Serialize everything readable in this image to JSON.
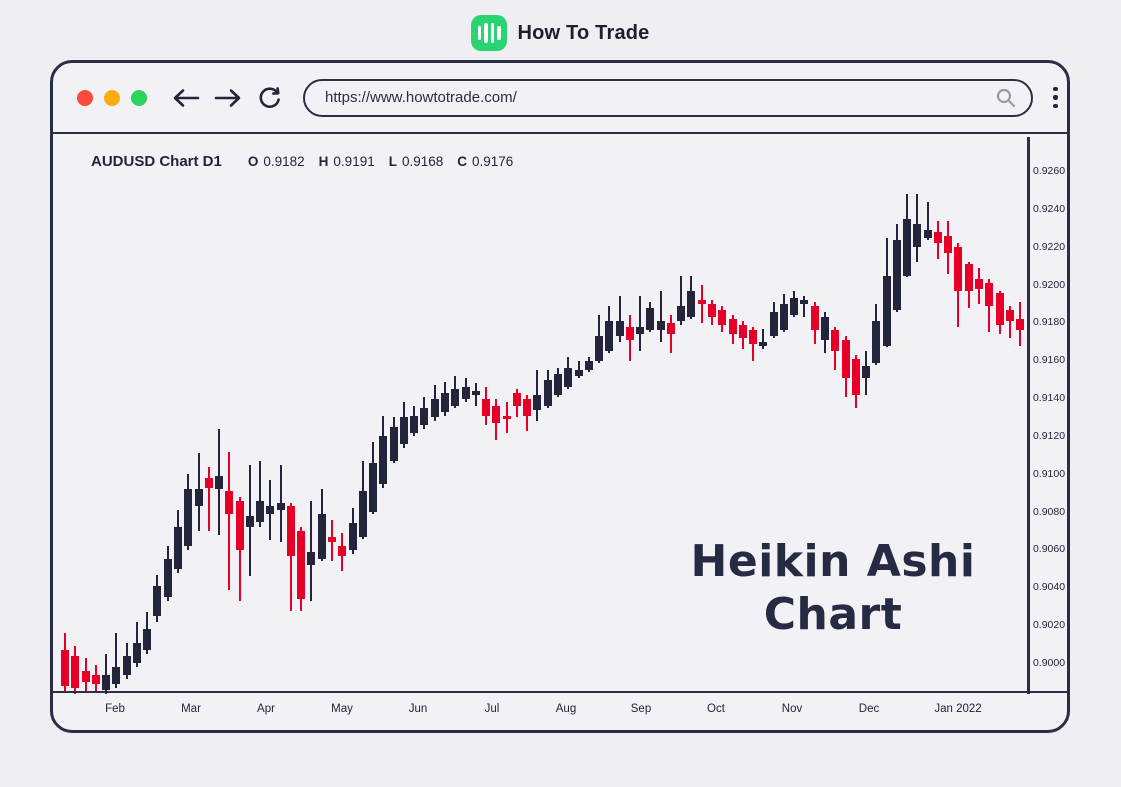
{
  "brand": {
    "name": "How To Trade",
    "logo_color": "#2bd473",
    "logo_icon": "candlestick-bars-icon"
  },
  "browser": {
    "url": "https://www.howtotrade.com/",
    "traffic_lights": [
      "#fb4a3e",
      "#fcaa12",
      "#2bd45f"
    ]
  },
  "chart": {
    "symbol_title": "AUDUSD Chart D1",
    "ohlc": {
      "o_label": "O",
      "o": "0.9182",
      "h_label": "H",
      "h": "0.9191",
      "l_label": "L",
      "l": "0.9168",
      "c_label": "C",
      "c": "0.9176"
    },
    "watermark_line1": "Heikin Ashi",
    "watermark_line2": "Chart",
    "colors": {
      "bull": "#23253a",
      "bear": "#e60028",
      "axis": "#2c2e45"
    }
  },
  "chart_data": {
    "type": "candlestick",
    "title": "AUDUSD Chart D1",
    "subtitle": "Heikin Ashi Chart",
    "x_labels": [
      "Feb",
      "Mar",
      "Apr",
      "May",
      "Jun",
      "Jul",
      "Aug",
      "Sep",
      "Oct",
      "Nov",
      "Dec",
      "Jan 2022"
    ],
    "y_tick_labels": [
      "0.9260",
      "0.9240",
      "0.9220",
      "0.9200",
      "0.9180",
      "0.9160",
      "0.9140",
      "0.9120",
      "0.9100",
      "0.9080",
      "0.9060",
      "0.9040",
      "0.9020",
      "0.9000"
    ],
    "y_range": [
      0.898,
      0.9262
    ],
    "grid": false,
    "legend": false,
    "candles_format": [
      "open",
      "high",
      "low",
      "close"
    ],
    "candles": [
      [
        0.9007,
        0.9016,
        0.8985,
        0.8988
      ],
      [
        0.9004,
        0.9009,
        0.8984,
        0.8987
      ],
      [
        0.8996,
        0.9003,
        0.8985,
        0.899
      ],
      [
        0.8994,
        0.8999,
        0.8985,
        0.8989
      ],
      [
        0.8986,
        0.9005,
        0.8984,
        0.8994
      ],
      [
        0.8989,
        0.9016,
        0.8987,
        0.8998
      ],
      [
        0.8994,
        0.9011,
        0.8992,
        0.9004
      ],
      [
        0.9,
        0.9022,
        0.8998,
        0.9011
      ],
      [
        0.9007,
        0.9027,
        0.9005,
        0.9018
      ],
      [
        0.9025,
        0.9047,
        0.9022,
        0.9041
      ],
      [
        0.9035,
        0.9062,
        0.9033,
        0.9055
      ],
      [
        0.905,
        0.9081,
        0.9048,
        0.9072
      ],
      [
        0.9062,
        0.91,
        0.906,
        0.9092
      ],
      [
        0.9083,
        0.9111,
        0.907,
        0.9092
      ],
      [
        0.9098,
        0.9104,
        0.907,
        0.9093
      ],
      [
        0.9092,
        0.9124,
        0.9068,
        0.9099
      ],
      [
        0.9091,
        0.9112,
        0.9039,
        0.9079
      ],
      [
        0.9086,
        0.9088,
        0.9033,
        0.906
      ],
      [
        0.9072,
        0.9105,
        0.9046,
        0.9078
      ],
      [
        0.9075,
        0.9107,
        0.9072,
        0.9086
      ],
      [
        0.9079,
        0.9097,
        0.9065,
        0.9083
      ],
      [
        0.9081,
        0.9105,
        0.9064,
        0.9085
      ],
      [
        0.9083,
        0.9085,
        0.9028,
        0.9057
      ],
      [
        0.907,
        0.9072,
        0.9028,
        0.9034
      ],
      [
        0.9052,
        0.9086,
        0.9033,
        0.9059
      ],
      [
        0.9055,
        0.9092,
        0.9054,
        0.9079
      ],
      [
        0.9067,
        0.9076,
        0.9054,
        0.9064
      ],
      [
        0.9062,
        0.9069,
        0.9049,
        0.9057
      ],
      [
        0.906,
        0.9082,
        0.9058,
        0.9074
      ],
      [
        0.9067,
        0.9107,
        0.9066,
        0.9091
      ],
      [
        0.908,
        0.9117,
        0.9079,
        0.9106
      ],
      [
        0.9095,
        0.9131,
        0.9093,
        0.912
      ],
      [
        0.9107,
        0.913,
        0.9106,
        0.9125
      ],
      [
        0.9116,
        0.9138,
        0.9114,
        0.913
      ],
      [
        0.9122,
        0.9136,
        0.912,
        0.9131
      ],
      [
        0.9126,
        0.9141,
        0.9124,
        0.9135
      ],
      [
        0.913,
        0.9147,
        0.9128,
        0.914
      ],
      [
        0.9133,
        0.9149,
        0.9131,
        0.9143
      ],
      [
        0.9136,
        0.9152,
        0.9135,
        0.9145
      ],
      [
        0.914,
        0.9151,
        0.9138,
        0.9146
      ],
      [
        0.9142,
        0.9148,
        0.9136,
        0.9144
      ],
      [
        0.914,
        0.9146,
        0.9126,
        0.9131
      ],
      [
        0.9136,
        0.914,
        0.9118,
        0.9127
      ],
      [
        0.9131,
        0.9138,
        0.9122,
        0.9129
      ],
      [
        0.9143,
        0.9145,
        0.913,
        0.9136
      ],
      [
        0.914,
        0.9142,
        0.9123,
        0.9131
      ],
      [
        0.9134,
        0.9155,
        0.9128,
        0.9142
      ],
      [
        0.9136,
        0.9155,
        0.9135,
        0.915
      ],
      [
        0.9142,
        0.9156,
        0.9141,
        0.9153
      ],
      [
        0.9146,
        0.9162,
        0.9145,
        0.9156
      ],
      [
        0.9152,
        0.916,
        0.9151,
        0.9155
      ],
      [
        0.9155,
        0.9162,
        0.9154,
        0.916
      ],
      [
        0.916,
        0.9184,
        0.9159,
        0.9173
      ],
      [
        0.9165,
        0.9189,
        0.9164,
        0.9181
      ],
      [
        0.9173,
        0.9194,
        0.917,
        0.9181
      ],
      [
        0.9178,
        0.9184,
        0.916,
        0.9171
      ],
      [
        0.9174,
        0.9194,
        0.9165,
        0.9178
      ],
      [
        0.9176,
        0.9191,
        0.9175,
        0.9188
      ],
      [
        0.9176,
        0.9197,
        0.917,
        0.9181
      ],
      [
        0.918,
        0.9184,
        0.9164,
        0.9174
      ],
      [
        0.9181,
        0.9205,
        0.9179,
        0.9189
      ],
      [
        0.9183,
        0.9205,
        0.9182,
        0.9197
      ],
      [
        0.9192,
        0.92,
        0.918,
        0.919
      ],
      [
        0.919,
        0.9192,
        0.9179,
        0.9183
      ],
      [
        0.9187,
        0.9189,
        0.9175,
        0.9179
      ],
      [
        0.9182,
        0.9184,
        0.9169,
        0.9174
      ],
      [
        0.9179,
        0.9181,
        0.9166,
        0.9172
      ],
      [
        0.9176,
        0.9178,
        0.916,
        0.9169
      ],
      [
        0.9168,
        0.9177,
        0.9166,
        0.917
      ],
      [
        0.9173,
        0.9191,
        0.9172,
        0.9186
      ],
      [
        0.9176,
        0.9195,
        0.9175,
        0.919
      ],
      [
        0.9184,
        0.9197,
        0.9183,
        0.9193
      ],
      [
        0.919,
        0.9194,
        0.9183,
        0.9192
      ],
      [
        0.9189,
        0.9191,
        0.9169,
        0.9176
      ],
      [
        0.9171,
        0.9186,
        0.9164,
        0.9183
      ],
      [
        0.9176,
        0.9178,
        0.9155,
        0.9165
      ],
      [
        0.9171,
        0.9173,
        0.9141,
        0.9151
      ],
      [
        0.9161,
        0.9163,
        0.9135,
        0.9142
      ],
      [
        0.9151,
        0.9165,
        0.9142,
        0.9157
      ],
      [
        0.9159,
        0.919,
        0.9158,
        0.9181
      ],
      [
        0.9168,
        0.9225,
        0.9167,
        0.9205
      ],
      [
        0.9187,
        0.9232,
        0.9186,
        0.9224
      ],
      [
        0.9205,
        0.9248,
        0.9204,
        0.9235
      ],
      [
        0.922,
        0.9248,
        0.9212,
        0.9232
      ],
      [
        0.9225,
        0.9244,
        0.9224,
        0.9229
      ],
      [
        0.9228,
        0.9234,
        0.9214,
        0.9222
      ],
      [
        0.9226,
        0.9234,
        0.9206,
        0.9217
      ],
      [
        0.922,
        0.9222,
        0.9178,
        0.9197
      ],
      [
        0.9211,
        0.9212,
        0.9188,
        0.9197
      ],
      [
        0.9203,
        0.9209,
        0.919,
        0.9198
      ],
      [
        0.9201,
        0.9203,
        0.9175,
        0.9189
      ],
      [
        0.9196,
        0.9197,
        0.9174,
        0.9179
      ],
      [
        0.9187,
        0.9189,
        0.9172,
        0.9181
      ],
      [
        0.9182,
        0.9191,
        0.9168,
        0.9176
      ]
    ]
  }
}
